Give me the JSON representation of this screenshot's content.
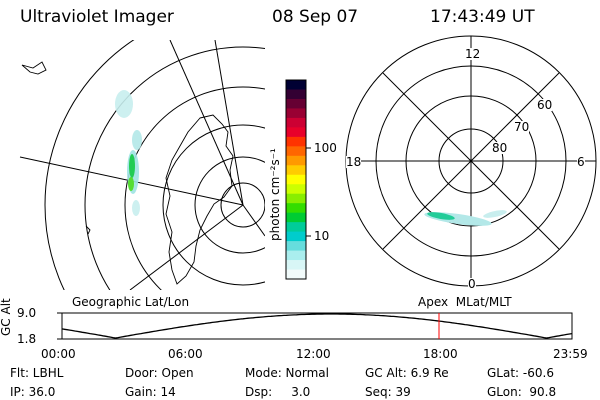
{
  "header": {
    "instrument": "Ultraviolet Imager",
    "date": "08 Sep 07",
    "time": "17:43:49 UT"
  },
  "geo_panel": {
    "label": "Geographic Lat/Lon"
  },
  "colorbar": {
    "unit_label": "photon cm⁻²s⁻¹",
    "tick_labels": [
      "100",
      "10"
    ],
    "ticks": [
      100,
      10
    ],
    "colors": [
      "#000033",
      "#330033",
      "#660033",
      "#990033",
      "#cc0033",
      "#e8002a",
      "#ff3300",
      "#ff6600",
      "#ff9900",
      "#ffcc00",
      "#ffff00",
      "#ccff00",
      "#88ee00",
      "#33dd00",
      "#00cc33",
      "#00cc99",
      "#00cccc",
      "#66dddd",
      "#aaeeee",
      "#d8f6f6",
      "#f2fbfb"
    ]
  },
  "polar_panel": {
    "label": "Apex  MLat/MLT",
    "mlt_labels": [
      "12",
      "18",
      "6",
      "0"
    ],
    "mlat_labels": [
      "60",
      "70",
      "80"
    ]
  },
  "timeline": {
    "axis_label": "GC Alt",
    "y_labels": [
      "9.0",
      "1.8"
    ],
    "x_labels": [
      "00:00",
      "06:00",
      "12:00",
      "18:00",
      "23:59"
    ],
    "marker_time": "17:43:49",
    "marker_color": "#ff0000"
  },
  "status": {
    "filter": "Flt: LBHL",
    "door": "Door: Open",
    "mode": "Mode: Normal",
    "gc_alt": "GC Alt: 6.9 Re",
    "glat": "GLat: -60.6",
    "ip": "IP: 36.0",
    "gain": "Gain: 14",
    "dsp": "Dsp:     3.0",
    "seq": "Seq: 39",
    "glon": "GLon:  90.8"
  }
}
